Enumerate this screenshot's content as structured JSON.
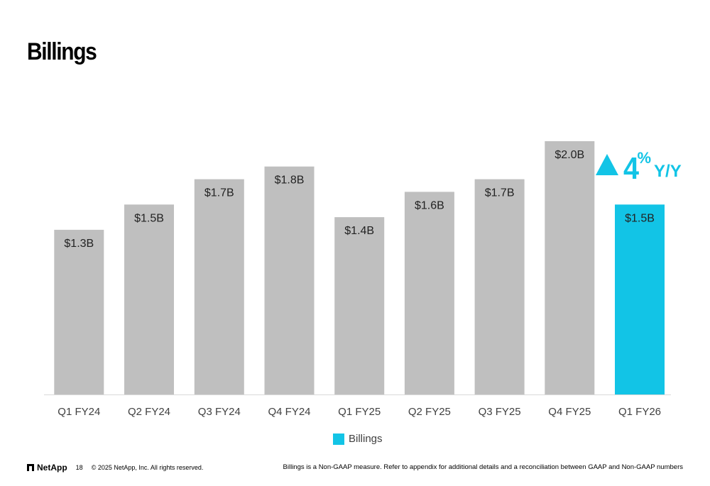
{
  "title": "Billings",
  "chart_data": {
    "type": "bar",
    "categories": [
      "Q1 FY24",
      "Q2 FY24",
      "Q3 FY24",
      "Q4 FY24",
      "Q1 FY25",
      "Q2 FY25",
      "Q3 FY25",
      "Q4 FY25",
      "Q1 FY26"
    ],
    "series": [
      {
        "name": "Billings",
        "values": [
          1.3,
          1.5,
          1.7,
          1.8,
          1.4,
          1.6,
          1.7,
          2.0,
          1.5
        ],
        "labels": [
          "$1.3B",
          "$1.5B",
          "$1.7B",
          "$1.8B",
          "$1.4B",
          "$1.6B",
          "$1.7B",
          "$2.0B",
          "$1.5B"
        ]
      }
    ],
    "ylim": [
      0,
      2.0
    ],
    "grid": false,
    "legend_placement": "bottom",
    "colors": {
      "default_bar": "#BFBFBF",
      "highlight_bar": "#12C4E6"
    },
    "highlight_index": 8
  },
  "yoy": {
    "value": "4",
    "percent_sign": "%",
    "label": "Y/Y",
    "direction": "up",
    "color": "#12C4E6"
  },
  "legend": {
    "label": "Billings",
    "color": "#12C4E6"
  },
  "footer": {
    "logo_text": "NetApp",
    "page_number": "18",
    "copyright": "© 2025 NetApp, Inc. All rights reserved.",
    "footnote": "Billings is a Non-GAAP measure. Refer to appendix for additional details and a reconciliation between GAAP and Non-GAAP numbers"
  }
}
